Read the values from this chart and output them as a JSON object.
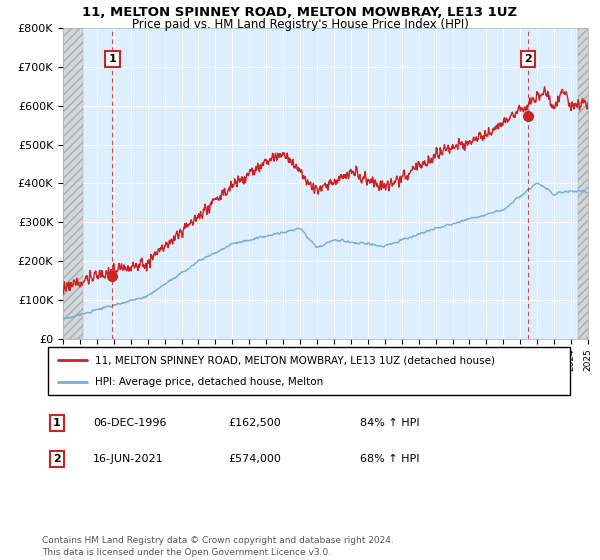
{
  "title": "11, MELTON SPINNEY ROAD, MELTON MOWBRAY, LE13 1UZ",
  "subtitle": "Price paid vs. HM Land Registry's House Price Index (HPI)",
  "hpi_color": "#7aaadd",
  "price_color": "#cc2222",
  "marker_color": "#cc2222",
  "plot_bg_color": "#ddeeff",
  "ylim": [
    0,
    800000
  ],
  "yticks": [
    0,
    100000,
    200000,
    300000,
    400000,
    500000,
    600000,
    700000,
    800000
  ],
  "ytick_labels": [
    "£0",
    "£100K",
    "£200K",
    "£300K",
    "£400K",
    "£500K",
    "£600K",
    "£700K",
    "£800K"
  ],
  "x_start_year": 1994,
  "x_end_year": 2025,
  "sale1_year": 1996.92,
  "sale1_price": 162500,
  "sale2_year": 2021.46,
  "sale2_price": 574000,
  "legend_label1": "11, MELTON SPINNEY ROAD, MELTON MOWBRAY, LE13 1UZ (detached house)",
  "legend_label2": "HPI: Average price, detached house, Melton",
  "note1_num": "1",
  "note1_date": "06-DEC-1996",
  "note1_price": "£162,500",
  "note1_hpi": "84% ↑ HPI",
  "note2_num": "2",
  "note2_date": "16-JUN-2021",
  "note2_price": "£574,000",
  "note2_hpi": "68% ↑ HPI",
  "footer": "Contains HM Land Registry data © Crown copyright and database right 2024.\nThis data is licensed under the Open Government Licence v3.0."
}
